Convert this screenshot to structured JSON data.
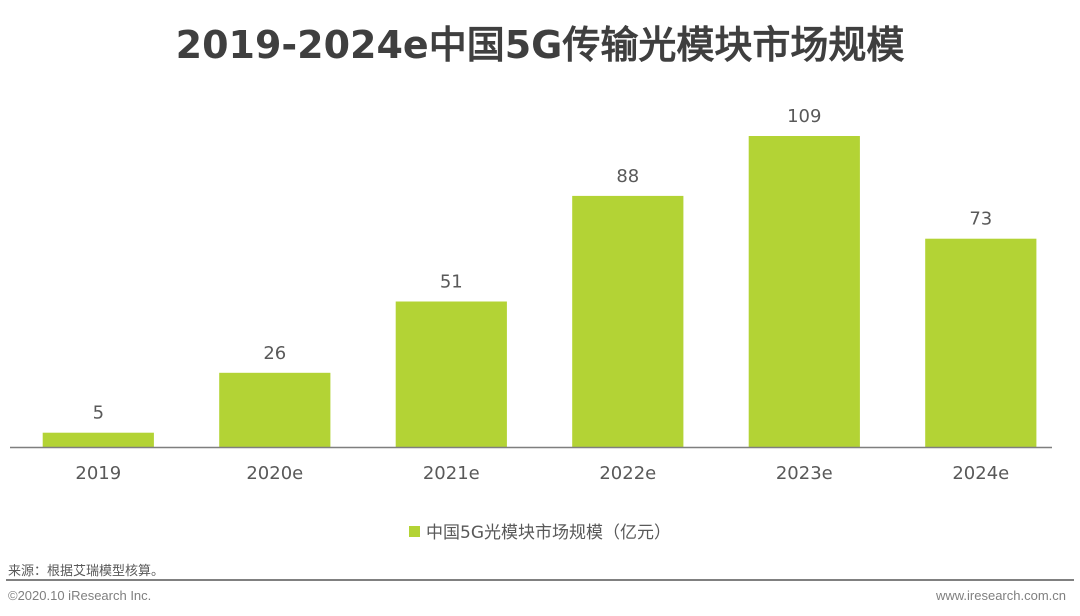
{
  "title": "2019-2024e中国5G传输光模块市场规模",
  "colors": {
    "bar": "#b3d335",
    "axis": "#7f7f7f",
    "label": "#595959"
  },
  "chart_data": {
    "type": "bar",
    "title": "2019-2024e中国5G传输光模块市场规模",
    "xlabel": "",
    "ylabel": "",
    "categories": [
      "2019",
      "2020e",
      "2021e",
      "2022e",
      "2023e",
      "2024e"
    ],
    "series": [
      {
        "name": "中国5G光模块市场规模（亿元）",
        "values": [
          5,
          26,
          51,
          88,
          109,
          73
        ]
      }
    ],
    "data_labels": [
      "5",
      "26",
      "51",
      "88",
      "109",
      "73"
    ],
    "ylim": [
      0,
      109
    ],
    "grid": false,
    "legend_position": "bottom"
  },
  "legend": {
    "label": "中国5G光模块市场规模（亿元）"
  },
  "footer": {
    "source": "来源：根据艾瑞模型核算。",
    "copyright": "©2020.10 iResearch Inc.",
    "website": "www.iresearch.com.cn"
  }
}
